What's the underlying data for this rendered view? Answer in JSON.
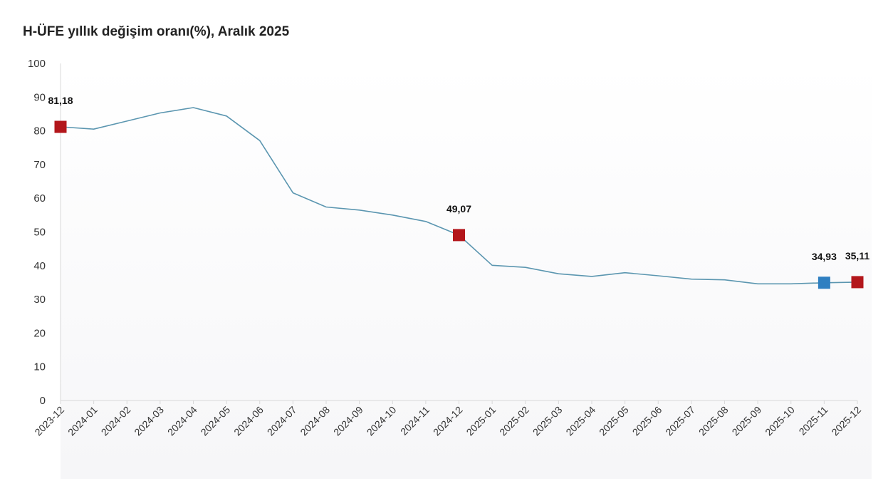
{
  "chart_data": {
    "type": "line",
    "title": "H-ÜFE yıllık değişim oranı(%), Aralık 2025",
    "xlabel": "",
    "ylabel": "",
    "ylim": [
      0,
      100
    ],
    "yticks": [
      0,
      10,
      20,
      30,
      40,
      50,
      60,
      70,
      80,
      90,
      100
    ],
    "grid": false,
    "legend": "none",
    "categories": [
      "2023-12",
      "2024-01",
      "2024-02",
      "2024-03",
      "2024-04",
      "2024-05",
      "2024-06",
      "2024-07",
      "2024-08",
      "2024-09",
      "2024-10",
      "2024-11",
      "2024-12",
      "2025-01",
      "2025-02",
      "2025-03",
      "2025-04",
      "2025-05",
      "2025-06",
      "2025-07",
      "2025-08",
      "2025-09",
      "2025-10",
      "2025-11",
      "2025-12"
    ],
    "series": [
      {
        "values": [
          81.18,
          80.5,
          82.9,
          85.3,
          86.9,
          84.4,
          77.1,
          61.6,
          57.4,
          56.5,
          55.0,
          53.1,
          49.07,
          40.1,
          39.5,
          37.6,
          36.8,
          37.9,
          37.0,
          36.0,
          35.8,
          34.6,
          34.6,
          34.93,
          35.11
        ],
        "color": "#5b96b0"
      }
    ],
    "highlights": [
      {
        "category": "2023-12",
        "value": 81.18,
        "label": "81,18",
        "color": "#b3161b"
      },
      {
        "category": "2024-12",
        "value": 49.07,
        "label": "49,07",
        "color": "#b3161b"
      },
      {
        "category": "2025-11",
        "value": 34.93,
        "label": "34,93",
        "color": "#2f7fc1"
      },
      {
        "category": "2025-12",
        "value": 35.11,
        "label": "35,11",
        "color": "#b3161b"
      }
    ]
  }
}
